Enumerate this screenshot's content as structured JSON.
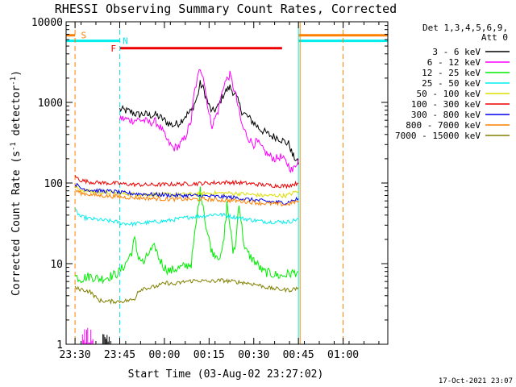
{
  "chart_data": {
    "type": "line",
    "title": "RHESSI Observing Summary Count Rates, Corrected",
    "xlabel": "Start Time (03-Aug-02 23:27:02)",
    "ylabel_main": "Corrected Count Rate (s",
    "ylabel_sup1": "-1",
    "ylabel_mid": " detector",
    "ylabel_sup2": "-1",
    "ylabel_end": ")",
    "footer": "17-Oct-2021 23:07",
    "x_unit": "minutes since 23:27:02",
    "xlim": [
      0,
      108
    ],
    "ylim": [
      1,
      10000
    ],
    "yscale": "log",
    "y_ticks": [
      {
        "value": 1,
        "label": "1"
      },
      {
        "value": 10,
        "label": "10"
      },
      {
        "value": 100,
        "label": "100"
      },
      {
        "value": 1000,
        "label": "1000"
      },
      {
        "value": 10000,
        "label": "10000"
      }
    ],
    "x_ticks": [
      {
        "value": 3,
        "label": "23:30"
      },
      {
        "value": 18,
        "label": "23:45"
      },
      {
        "value": 33,
        "label": "00:00"
      },
      {
        "value": 48,
        "label": "00:15"
      },
      {
        "value": 63,
        "label": "00:30"
      },
      {
        "value": 78,
        "label": "00:45"
      },
      {
        "value": 93,
        "label": "01:00"
      }
    ],
    "legend_header": [
      "Det 1,3,4,5,6,9,",
      "Att 0"
    ],
    "legend_position": "right",
    "series": [
      {
        "name": "3 - 6 keV",
        "color": "#000000",
        "points": [
          [
            18,
            820
          ],
          [
            20,
            790
          ],
          [
            22,
            760
          ],
          [
            24,
            700
          ],
          [
            26,
            720
          ],
          [
            28,
            690
          ],
          [
            30,
            700
          ],
          [
            32,
            640
          ],
          [
            34,
            560
          ],
          [
            36,
            520
          ],
          [
            38,
            560
          ],
          [
            40,
            680
          ],
          [
            42,
            780
          ],
          [
            44,
            1150
          ],
          [
            45,
            1700
          ],
          [
            46,
            1500
          ],
          [
            48,
            900
          ],
          [
            49,
            760
          ],
          [
            51,
            880
          ],
          [
            53,
            1300
          ],
          [
            55,
            1550
          ],
          [
            57,
            1200
          ],
          [
            59,
            780
          ],
          [
            61,
            660
          ],
          [
            63,
            560
          ],
          [
            65,
            470
          ],
          [
            67,
            420
          ],
          [
            69,
            380
          ],
          [
            71,
            370
          ],
          [
            73,
            330
          ],
          [
            75,
            300
          ],
          [
            76,
            220
          ],
          [
            77,
            200
          ],
          [
            78,
            170
          ]
        ]
      },
      {
        "name": "6 - 12 keV",
        "color": "#ff00ff",
        "points": [
          [
            18,
            640
          ],
          [
            20,
            620
          ],
          [
            22,
            600
          ],
          [
            24,
            610
          ],
          [
            26,
            600
          ],
          [
            28,
            560
          ],
          [
            30,
            580
          ],
          [
            32,
            470
          ],
          [
            34,
            330
          ],
          [
            36,
            270
          ],
          [
            38,
            290
          ],
          [
            40,
            370
          ],
          [
            42,
            600
          ],
          [
            43,
            1300
          ],
          [
            45,
            2700
          ],
          [
            46,
            2200
          ],
          [
            48,
            700
          ],
          [
            49,
            520
          ],
          [
            51,
            780
          ],
          [
            53,
            1700
          ],
          [
            55,
            2200
          ],
          [
            57,
            1200
          ],
          [
            59,
            520
          ],
          [
            61,
            370
          ],
          [
            63,
            300
          ],
          [
            64,
            330
          ],
          [
            66,
            260
          ],
          [
            68,
            220
          ],
          [
            70,
            200
          ],
          [
            72,
            210
          ],
          [
            74,
            180
          ],
          [
            76,
            140
          ],
          [
            78,
            200
          ]
        ]
      },
      {
        "name": "12 - 25 keV",
        "color": "#00ee00",
        "points": [
          [
            3,
            7
          ],
          [
            5,
            6.5
          ],
          [
            8,
            7
          ],
          [
            11,
            6.5
          ],
          [
            14,
            6.8
          ],
          [
            17,
            7.5
          ],
          [
            18,
            8
          ],
          [
            20,
            10
          ],
          [
            22,
            14
          ],
          [
            23,
            20
          ],
          [
            24,
            13
          ],
          [
            26,
            10
          ],
          [
            28,
            14
          ],
          [
            30,
            16
          ],
          [
            31,
            12
          ],
          [
            33,
            9
          ],
          [
            35,
            8
          ],
          [
            36,
            8.5
          ],
          [
            39,
            9
          ],
          [
            42,
            10
          ],
          [
            44,
            40
          ],
          [
            45,
            80
          ],
          [
            46,
            55
          ],
          [
            47,
            28
          ],
          [
            49,
            14
          ],
          [
            52,
            12
          ],
          [
            53,
            20
          ],
          [
            54,
            55
          ],
          [
            55,
            30
          ],
          [
            56,
            14
          ],
          [
            57,
            18
          ],
          [
            58,
            60
          ],
          [
            59,
            28
          ],
          [
            60,
            15
          ],
          [
            62,
            12
          ],
          [
            64,
            10
          ],
          [
            66,
            8
          ],
          [
            69,
            7.5
          ],
          [
            72,
            7
          ],
          [
            75,
            7.5
          ],
          [
            78,
            8
          ]
        ]
      },
      {
        "name": "25 - 50 keV",
        "color": "#00eeee",
        "points": [
          [
            3,
            46
          ],
          [
            5,
            38
          ],
          [
            8,
            36
          ],
          [
            11,
            35
          ],
          [
            14,
            34
          ],
          [
            17,
            33
          ],
          [
            18,
            32
          ],
          [
            22,
            31
          ],
          [
            26,
            32
          ],
          [
            30,
            33
          ],
          [
            34,
            34
          ],
          [
            38,
            36
          ],
          [
            42,
            38
          ],
          [
            46,
            39
          ],
          [
            50,
            41
          ],
          [
            53,
            40
          ],
          [
            56,
            38
          ],
          [
            60,
            36
          ],
          [
            64,
            34
          ],
          [
            68,
            33
          ],
          [
            72,
            33
          ],
          [
            75,
            33
          ],
          [
            78,
            36
          ]
        ]
      },
      {
        "name": "50 - 100 keV",
        "color": "#dddd00",
        "points": [
          [
            3,
            90
          ],
          [
            5,
            82
          ],
          [
            8,
            79
          ],
          [
            11,
            77
          ],
          [
            14,
            76
          ],
          [
            17,
            75
          ],
          [
            18,
            74
          ],
          [
            22,
            73
          ],
          [
            26,
            72
          ],
          [
            30,
            72
          ],
          [
            34,
            72
          ],
          [
            38,
            72
          ],
          [
            42,
            73
          ],
          [
            46,
            74
          ],
          [
            50,
            75
          ],
          [
            54,
            75
          ],
          [
            58,
            74
          ],
          [
            62,
            72
          ],
          [
            66,
            70
          ],
          [
            70,
            70
          ],
          [
            74,
            70
          ],
          [
            78,
            80
          ]
        ]
      },
      {
        "name": "100 - 300 keV",
        "color": "#ee0000",
        "points": [
          [
            3,
            120
          ],
          [
            5,
            108
          ],
          [
            8,
            103
          ],
          [
            11,
            101
          ],
          [
            14,
            100
          ],
          [
            17,
            99
          ],
          [
            18,
            98
          ],
          [
            22,
            96
          ],
          [
            26,
            95
          ],
          [
            30,
            95
          ],
          [
            34,
            96
          ],
          [
            38,
            97
          ],
          [
            42,
            98
          ],
          [
            46,
            99
          ],
          [
            50,
            101
          ],
          [
            54,
            102
          ],
          [
            58,
            101
          ],
          [
            62,
            98
          ],
          [
            66,
            95
          ],
          [
            70,
            93
          ],
          [
            74,
            92
          ],
          [
            78,
            100
          ]
        ]
      },
      {
        "name": "300 - 800 keV",
        "color": "#0000ee",
        "points": [
          [
            3,
            98
          ],
          [
            5,
            86
          ],
          [
            8,
            82
          ],
          [
            11,
            80
          ],
          [
            14,
            79
          ],
          [
            17,
            78
          ],
          [
            18,
            76
          ],
          [
            22,
            74
          ],
          [
            26,
            73
          ],
          [
            30,
            72
          ],
          [
            34,
            71
          ],
          [
            38,
            70
          ],
          [
            42,
            70
          ],
          [
            46,
            69
          ],
          [
            50,
            68
          ],
          [
            54,
            67
          ],
          [
            58,
            65
          ],
          [
            62,
            62
          ],
          [
            66,
            60
          ],
          [
            70,
            58
          ],
          [
            74,
            57
          ],
          [
            78,
            64
          ]
        ]
      },
      {
        "name": "800 - 7000 keV",
        "color": "#ff8000",
        "points": [
          [
            3,
            82
          ],
          [
            5,
            75
          ],
          [
            8,
            72
          ],
          [
            11,
            70
          ],
          [
            14,
            69
          ],
          [
            17,
            68
          ],
          [
            18,
            67
          ],
          [
            22,
            66
          ],
          [
            26,
            65
          ],
          [
            30,
            64
          ],
          [
            34,
            63
          ],
          [
            38,
            63
          ],
          [
            42,
            63
          ],
          [
            46,
            63
          ],
          [
            50,
            62
          ],
          [
            54,
            61
          ],
          [
            58,
            60
          ],
          [
            62,
            58
          ],
          [
            66,
            56
          ],
          [
            70,
            55
          ],
          [
            74,
            54
          ],
          [
            78,
            60
          ]
        ]
      },
      {
        "name": "7000 - 15000 keV",
        "color": "#808000",
        "points": [
          [
            3,
            5
          ],
          [
            5,
            4.8
          ],
          [
            8,
            4.5
          ],
          [
            11,
            3.5
          ],
          [
            14,
            3.4
          ],
          [
            17,
            3.4
          ],
          [
            18,
            3.4
          ],
          [
            21,
            3.5
          ],
          [
            23,
            3.6
          ],
          [
            24,
            4.5
          ],
          [
            26,
            5
          ],
          [
            28,
            5
          ],
          [
            30,
            5.2
          ],
          [
            32,
            5.5
          ],
          [
            34,
            5.8
          ],
          [
            36,
            5.5
          ],
          [
            40,
            6
          ],
          [
            44,
            6.2
          ],
          [
            48,
            6
          ],
          [
            52,
            6.2
          ],
          [
            56,
            6
          ],
          [
            60,
            5.8
          ],
          [
            64,
            5.5
          ],
          [
            68,
            5
          ],
          [
            72,
            4.8
          ],
          [
            75,
            4.7
          ],
          [
            78,
            5
          ]
        ]
      }
    ],
    "state_bars": [
      {
        "label": "S",
        "color": "#ff8000",
        "level": 6800,
        "ranges": [
          [
            0,
            3
          ],
          [
            78,
            108
          ]
        ],
        "label_x": 5
      },
      {
        "label": "N",
        "color": "#00eeee",
        "level": 5800,
        "ranges": [
          [
            0,
            18
          ],
          [
            78,
            108
          ]
        ],
        "label_x": 19
      },
      {
        "label": "F",
        "color": "#ee0000",
        "level": 4700,
        "ranges": [
          [
            18,
            72.5
          ]
        ],
        "label_x": 15
      }
    ],
    "vlines": [
      {
        "x": 3,
        "color": "#ff8000",
        "dashed": true
      },
      {
        "x": 18,
        "color": "#00eeee",
        "dashed": true
      },
      {
        "x": 78,
        "color": "#00eeee",
        "dashed": false
      },
      {
        "x": 78,
        "color": "#ff8000",
        "dashed": false
      },
      {
        "x": 93,
        "color": "#ff8000",
        "dashed": true
      }
    ],
    "gap_spikes": [
      {
        "color": "#ff00ff",
        "x_from": 5.5,
        "x_to": 9,
        "max": 1.6
      },
      {
        "color": "#000000",
        "x_from": 12,
        "x_to": 14.5,
        "max": 1.5
      }
    ]
  }
}
